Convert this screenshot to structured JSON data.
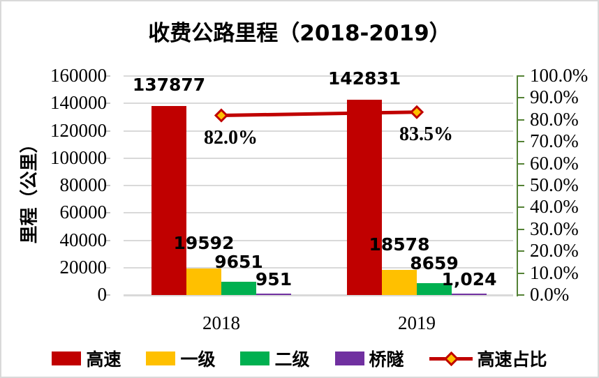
{
  "chart_data": {
    "type": "bar",
    "title": "收费公路里程（2018-2019）",
    "categories": [
      "2018",
      "2019"
    ],
    "series": [
      {
        "name": "高速",
        "type": "bar",
        "color": "#c00000",
        "values": [
          137877,
          142831
        ],
        "labels": [
          "137877",
          "142831"
        ]
      },
      {
        "name": "一级",
        "type": "bar",
        "color": "#ffc000",
        "values": [
          19592,
          18578
        ],
        "labels": [
          "19592",
          "18578"
        ]
      },
      {
        "name": "二级",
        "type": "bar",
        "color": "#00b050",
        "values": [
          9651,
          8659
        ],
        "labels": [
          "9651",
          "8659"
        ]
      },
      {
        "name": "桥隧",
        "type": "bar",
        "color": "#7030a0",
        "values": [
          951,
          1024
        ],
        "labels": [
          "951",
          "1,024"
        ]
      },
      {
        "name": "高速占比",
        "type": "line",
        "color": "#c00000",
        "marker_fill": "#ffc000",
        "values_pct": [
          82.0,
          83.5
        ],
        "labels": [
          "82.0%",
          "83.5%"
        ]
      }
    ],
    "left_axis": {
      "title": "里程（公里）",
      "min": 0,
      "max": 160000,
      "step": 20000,
      "tick_labels": [
        "0",
        "20000",
        "40000",
        "60000",
        "80000",
        "100000",
        "120000",
        "140000",
        "160000"
      ]
    },
    "right_axis": {
      "min": 0,
      "max": 100,
      "step": 10,
      "color": "#548235",
      "tick_labels": [
        "0.0%",
        "10.0%",
        "20.0%",
        "30.0%",
        "40.0%",
        "50.0%",
        "60.0%",
        "70.0%",
        "80.0%",
        "90.0%",
        "100.0%"
      ]
    },
    "gridline_color": "#d9d9d9",
    "legend": [
      "高速",
      "一级",
      "二级",
      "桥隧",
      "高速占比"
    ]
  }
}
